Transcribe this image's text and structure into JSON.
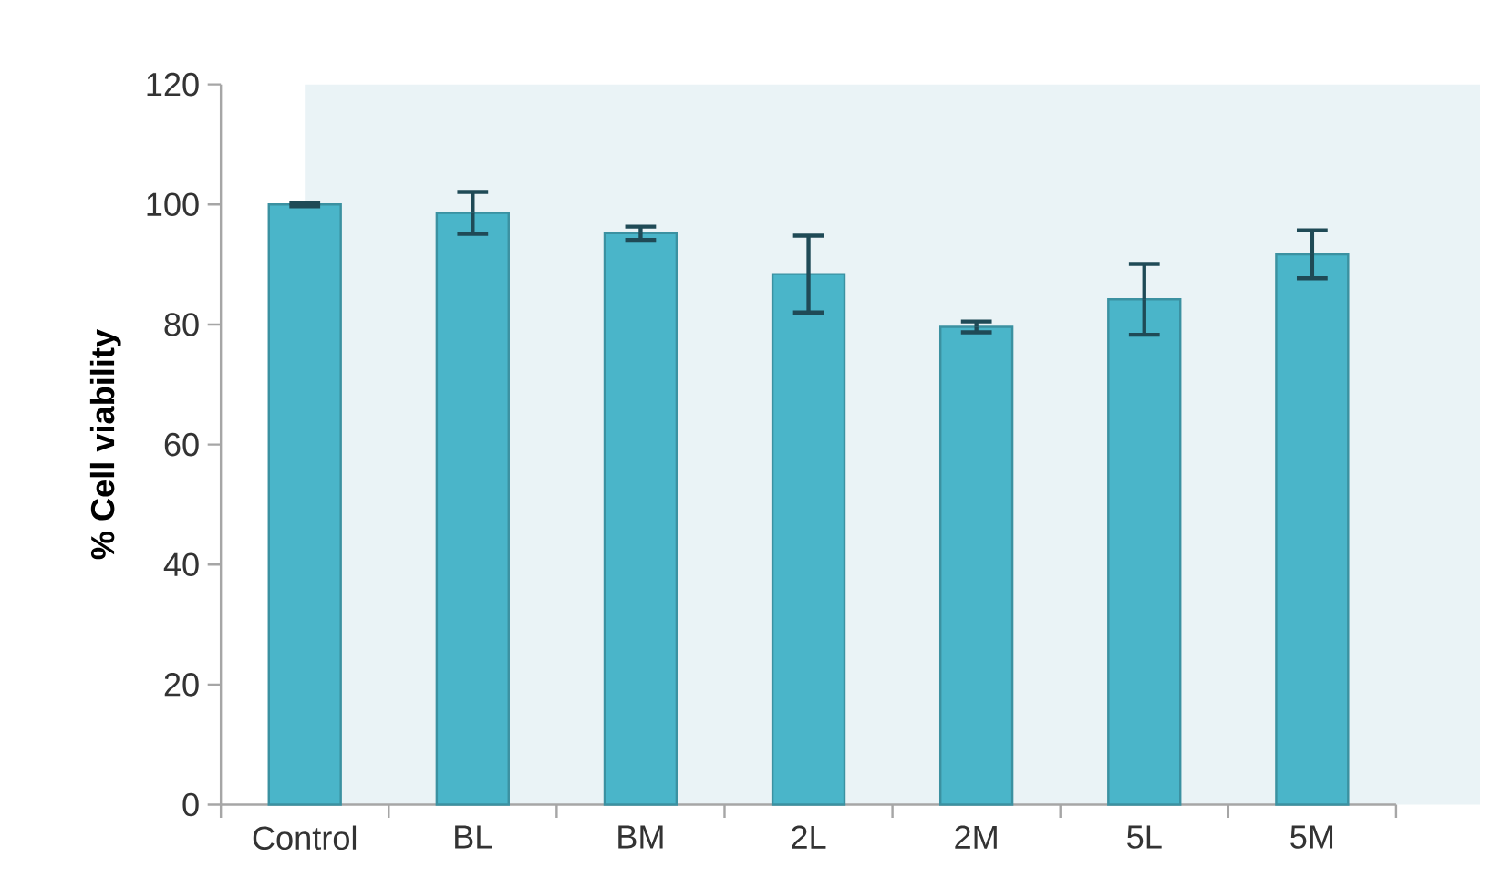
{
  "chart_data": {
    "type": "bar",
    "ylabel": "% Cell viability",
    "categories": [
      "Control",
      "BL",
      "BM",
      "2L",
      "2M",
      "5L",
      "5M"
    ],
    "values": [
      100,
      98.6,
      95.2,
      88.4,
      79.6,
      84.2,
      91.7
    ],
    "errors": [
      0.3,
      3.5,
      1.1,
      6.4,
      0.9,
      5.9,
      4
    ],
    "color": "#4ab5c9",
    "ylim": [
      0,
      120
    ],
    "yticks": [
      0,
      20,
      40,
      60,
      80,
      100,
      120
    ]
  }
}
